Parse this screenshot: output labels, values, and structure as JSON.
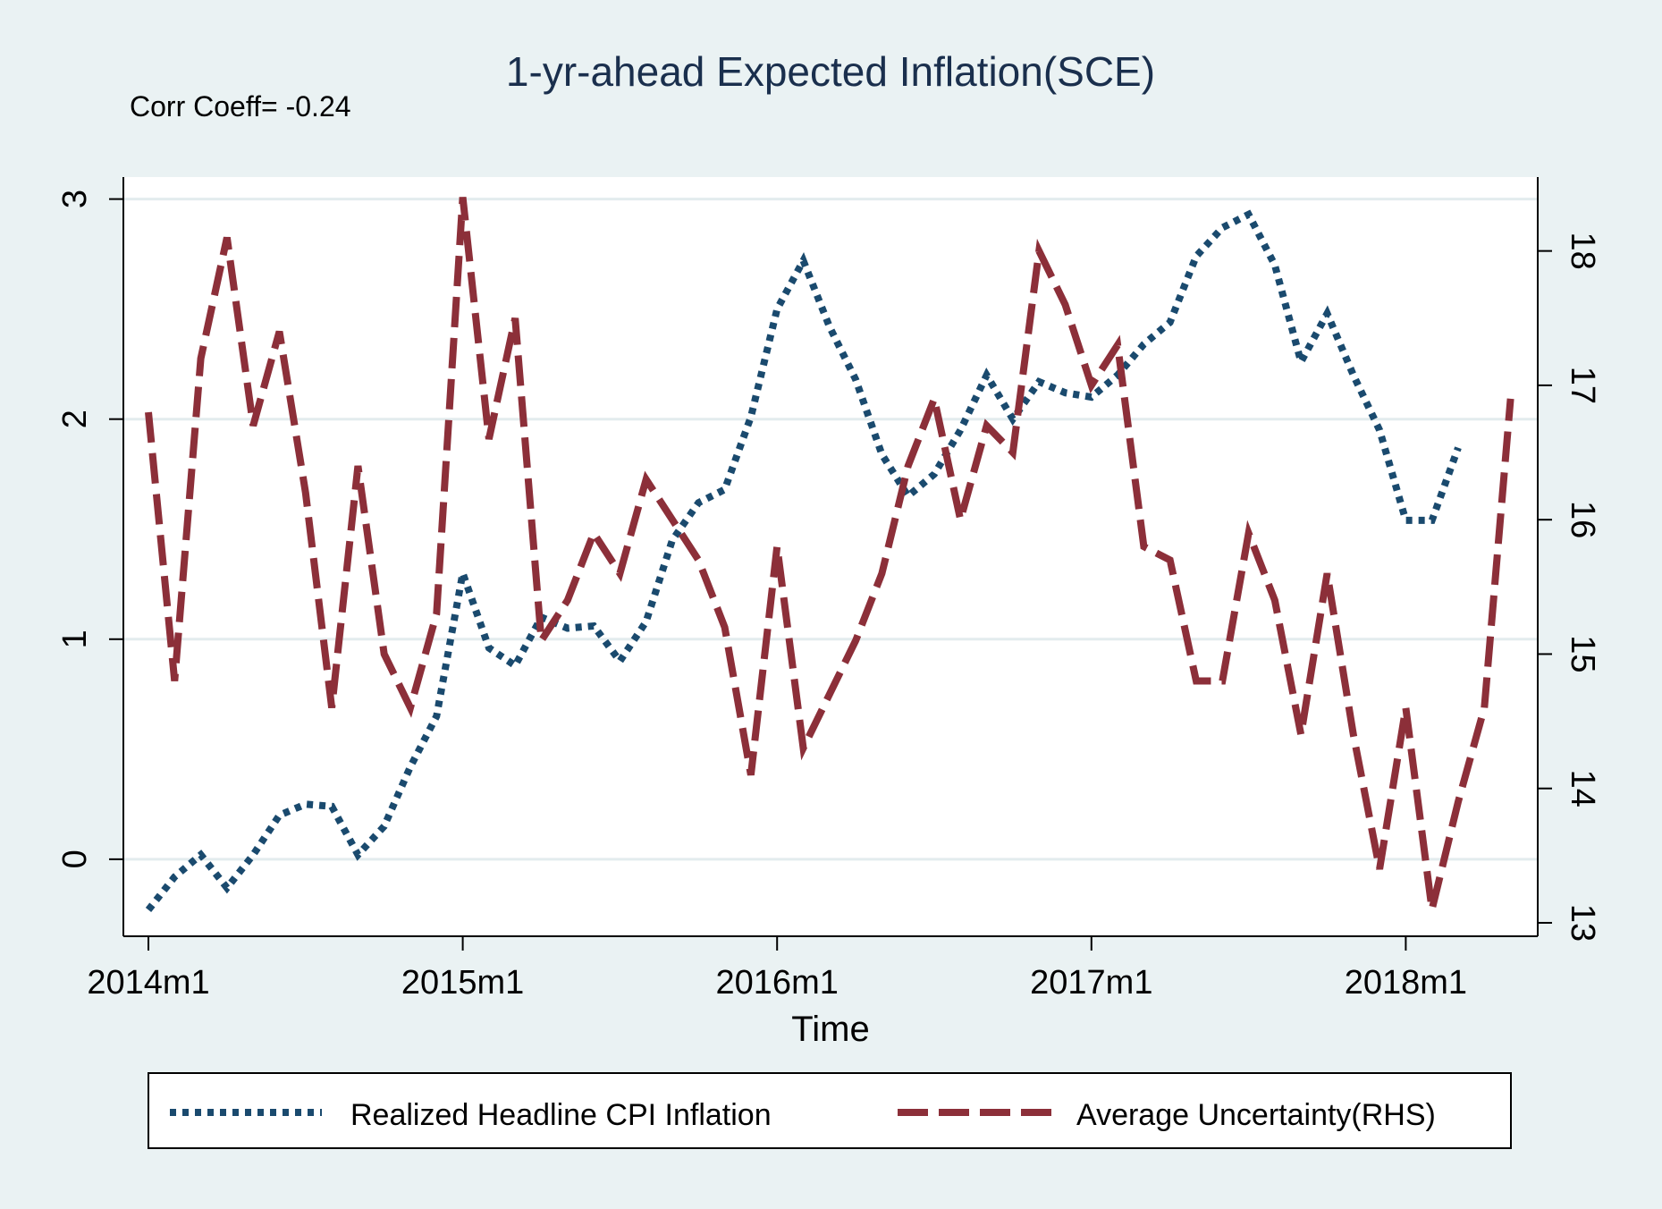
{
  "colors": {
    "background": "#eaf2f3",
    "plot_area": "#ffffff",
    "grid": "#e3ecee",
    "cpi_series": "#1a4a6e",
    "uncertainty_series": "#8c2f39"
  },
  "chart_data": {
    "type": "line",
    "title": "1-yr-ahead Expected Inflation(SCE)",
    "annotation": "Corr Coeff= -0.24",
    "xlabel": "Time",
    "x_ticks": [
      "2014m1",
      "2015m1",
      "2016m1",
      "2017m1",
      "2018m1"
    ],
    "xlim": [
      0,
      52
    ],
    "y_left": {
      "ticks": [
        "0",
        "1",
        "2",
        "3"
      ],
      "lim": [
        -0.35,
        3.1
      ]
    },
    "y_right": {
      "ticks": [
        "13",
        "14",
        "15",
        "16",
        "17",
        "18"
      ],
      "lim": [
        12.9,
        18.55
      ]
    },
    "grid": true,
    "legend_position": "bottom",
    "series": [
      {
        "name": "Realized Headline CPI Inflation",
        "axis": "left",
        "style": "dotted",
        "x": [
          0,
          1,
          2,
          3,
          4,
          5,
          6,
          7,
          8,
          9,
          10,
          11,
          12,
          13,
          14,
          15,
          16,
          17,
          18,
          19,
          20,
          21,
          22,
          23,
          24,
          25,
          26,
          27,
          28,
          29,
          30,
          31,
          32,
          33,
          34,
          35,
          36,
          37,
          38,
          39,
          40,
          41,
          42,
          43,
          44,
          45,
          46,
          47,
          48,
          49,
          50
        ],
        "y": [
          -0.23,
          -0.08,
          0.02,
          -0.13,
          0.02,
          0.2,
          0.25,
          0.24,
          0.02,
          0.15,
          0.42,
          0.65,
          1.3,
          0.96,
          0.88,
          1.1,
          1.05,
          1.06,
          0.9,
          1.08,
          1.45,
          1.62,
          1.68,
          2.01,
          2.5,
          2.72,
          2.42,
          2.18,
          1.84,
          1.65,
          1.75,
          1.95,
          2.2,
          2.0,
          2.17,
          2.12,
          2.1,
          2.2,
          2.34,
          2.44,
          2.74,
          2.87,
          2.93,
          2.7,
          2.26,
          2.48,
          2.2,
          1.95,
          1.54,
          1.54,
          1.87
        ]
      },
      {
        "name": "Average Uncertainty(RHS)",
        "axis": "right",
        "style": "dashed",
        "x": [
          0,
          1,
          2,
          3,
          4,
          5,
          6,
          7,
          8,
          9,
          10,
          11,
          12,
          13,
          14,
          15,
          16,
          17,
          18,
          19,
          20,
          21,
          22,
          23,
          24,
          25,
          26,
          27,
          28,
          29,
          30,
          31,
          32,
          33,
          34,
          35,
          36,
          37,
          38,
          39,
          40,
          41,
          42,
          43,
          44,
          45,
          46,
          47,
          48,
          49,
          50,
          51,
          52
        ],
        "y": [
          16.8,
          14.8,
          17.2,
          18.1,
          16.7,
          17.4,
          16.2,
          14.6,
          16.4,
          15.0,
          14.6,
          15.3,
          18.4,
          16.6,
          17.5,
          15.1,
          15.4,
          15.9,
          15.6,
          16.3,
          16.0,
          15.7,
          15.2,
          14.1,
          15.8,
          14.3,
          14.7,
          15.1,
          15.6,
          16.4,
          16.9,
          16.0,
          16.7,
          16.5,
          18.0,
          17.6,
          17.0,
          17.3,
          15.8,
          15.7,
          14.8,
          14.8,
          15.9,
          15.4,
          14.4,
          15.6,
          14.4,
          13.4,
          14.6,
          13.1,
          13.9,
          14.6,
          16.9
        ]
      }
    ]
  }
}
